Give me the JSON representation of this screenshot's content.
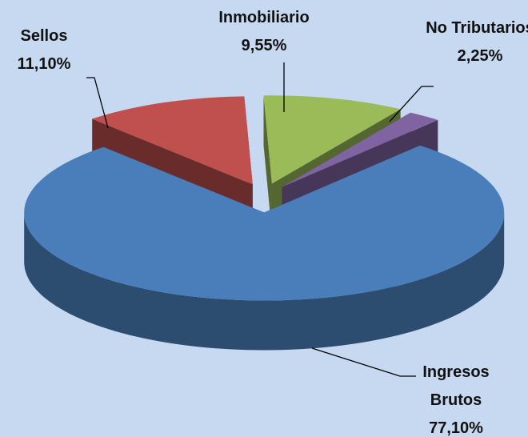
{
  "chart_data": {
    "type": "pie",
    "categories": [
      "Ingresos Brutos",
      "Sellos",
      "Inmobiliario",
      "No Tributarios"
    ],
    "values": [
      77.1,
      11.1,
      9.55,
      2.25
    ],
    "value_labels": [
      "77,10%",
      "11,10%",
      "9,55%",
      "2,25%"
    ],
    "colors": [
      "#4a7ebb",
      "#c0504d",
      "#9bbb59",
      "#8064a2"
    ]
  }
}
